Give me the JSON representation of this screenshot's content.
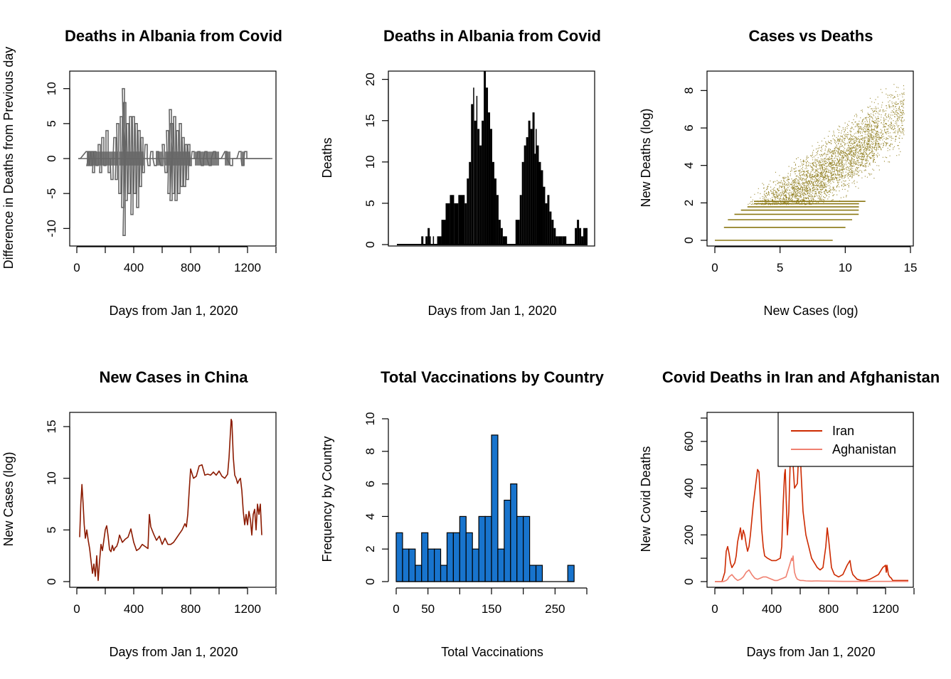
{
  "chart_data": [
    {
      "type": "line",
      "title": "Deaths in Albania from Covid",
      "xlabel": "Days from Jan 1, 2020",
      "ylabel": "Difference in Deaths from Previous day",
      "xlim": [
        0,
        1400
      ],
      "ylim": [
        -12,
        12
      ],
      "xticks": [
        0,
        400,
        800,
        1200
      ],
      "yticks": [
        -10,
        -5,
        0,
        5,
        10
      ],
      "color": "#666666",
      "series": [
        {
          "x": [
            10,
            65,
            70,
            80,
            90,
            100,
            110,
            120,
            135,
            150,
            160,
            175,
            190,
            205,
            220,
            240,
            260,
            270,
            280,
            295,
            305,
            315,
            320,
            325,
            330,
            340,
            350,
            360,
            370,
            380,
            390,
            400,
            410,
            420,
            430,
            440,
            450,
            460,
            480,
            500,
            520,
            545,
            560,
            590,
            600,
            620,
            630,
            640,
            650,
            655,
            660,
            670,
            680,
            690,
            700,
            710,
            720,
            730,
            740,
            750,
            760,
            770,
            780,
            790,
            810,
            830,
            850,
            875,
            900,
            930,
            960,
            1000,
            1040,
            1080,
            1110,
            1140,
            1160,
            1180,
            1250,
            1360
          ],
          "y": [
            0,
            1,
            -1,
            1,
            -1,
            1,
            -2,
            1,
            -1,
            2,
            -2,
            3,
            -1,
            4,
            -2,
            -3,
            3,
            -3,
            5,
            -5,
            6,
            -7,
            10,
            -11,
            8,
            -6,
            5,
            -5,
            6,
            -8,
            6,
            -5,
            5,
            -7,
            4,
            -4,
            3,
            -2,
            2,
            -1,
            1,
            -1,
            1,
            -1,
            2,
            -2,
            4,
            -5,
            7,
            -6,
            5,
            -5,
            6,
            -6,
            4,
            -5,
            5,
            -4,
            3,
            -4,
            2,
            -3,
            2,
            -1,
            1,
            0,
            1,
            -1,
            1,
            -1,
            1,
            0,
            1,
            -1,
            0,
            1,
            -1,
            1,
            0,
            0
          ]
        }
      ]
    },
    {
      "type": "bar",
      "title": "Deaths in Albania from Covid",
      "xlabel": "Days from Jan 1, 2020",
      "ylabel": "Deaths",
      "ylim": [
        0,
        21
      ],
      "yticks": [
        0,
        5,
        10,
        15,
        20
      ],
      "color": "#000000",
      "series": [
        {
          "x": [
            0,
            60,
            100,
            115,
            125,
            135,
            145,
            155,
            160,
            170,
            175,
            190,
            210,
            230,
            250,
            270,
            290,
            320,
            330,
            340,
            350,
            360,
            365,
            375,
            380,
            390,
            400,
            410,
            420,
            430,
            440,
            450,
            460,
            470,
            480,
            490,
            500,
            520,
            540,
            560,
            580,
            590,
            600,
            610,
            620,
            630,
            640,
            650,
            655,
            660,
            670,
            680,
            690,
            700,
            710,
            720,
            730,
            740,
            750,
            760,
            780,
            800,
            820,
            830,
            840,
            850,
            860,
            870,
            880,
            900
          ],
          "y": [
            0,
            0,
            0,
            1,
            0,
            1,
            2,
            1,
            0,
            1,
            0,
            1,
            3,
            5,
            6,
            5,
            6,
            5,
            8,
            10,
            17,
            19,
            15,
            18,
            14,
            12,
            15,
            21,
            19,
            16,
            14,
            10,
            8,
            6,
            3,
            2,
            1,
            0,
            0,
            3,
            6,
            10,
            12,
            13,
            15,
            14,
            16,
            11,
            14,
            12,
            10,
            9,
            7,
            5,
            6,
            4,
            3,
            2,
            1,
            1,
            1,
            0,
            0,
            0,
            2,
            3,
            2,
            1,
            2,
            1
          ]
        }
      ]
    },
    {
      "type": "scatter",
      "title": "Cases vs Deaths",
      "xlabel": "New Cases (log)",
      "ylabel": "New Deaths (log)",
      "xlim": [
        0,
        15
      ],
      "ylim": [
        0,
        9
      ],
      "xticks": [
        0,
        5,
        10,
        15
      ],
      "yticks": [
        0,
        2,
        4,
        6,
        8
      ],
      "color": "#8B7814",
      "points_description": [
        {
          "x": [
            0,
            9
          ],
          "y": 0
        },
        {
          "x": [
            0.7,
            10
          ],
          "y": 0.69
        },
        {
          "x": [
            1,
            10.5
          ],
          "y": 1.1
        },
        {
          "x": [
            1.5,
            11
          ],
          "y": 1.39
        },
        {
          "x": [
            2,
            11
          ],
          "y": 1.61
        },
        {
          "x": [
            2.5,
            11
          ],
          "y": 1.79
        },
        {
          "x": [
            3,
            11
          ],
          "y": 1.95
        },
        {
          "x": [
            3,
            11.5
          ],
          "y": 2.08
        }
      ],
      "cloud": {
        "x_range": [
          2.5,
          14.5
        ],
        "y_center_slope": 0.53,
        "y_center_intercept": -0.9
      }
    },
    {
      "type": "line",
      "title": "New Cases in China",
      "xlabel": "Days from Jan 1, 2020",
      "ylabel": "New Cases (log)",
      "xlim": [
        0,
        1400
      ],
      "ylim": [
        -0.5,
        16.5
      ],
      "xticks": [
        0,
        400,
        800,
        1200
      ],
      "yticks": [
        0,
        5,
        10,
        15
      ],
      "color": "#8B1A00",
      "series": [
        {
          "x": [
            20,
            28,
            36,
            44,
            52,
            60,
            70,
            80,
            90,
            100,
            110,
            120,
            130,
            140,
            150,
            160,
            170,
            180,
            190,
            200,
            210,
            220,
            230,
            240,
            250,
            260,
            270,
            280,
            290,
            300,
            320,
            340,
            360,
            380,
            400,
            420,
            440,
            460,
            480,
            500,
            510,
            520,
            540,
            560,
            580,
            600,
            620,
            640,
            660,
            680,
            700,
            720,
            740,
            760,
            770,
            780,
            790,
            800,
            820,
            840,
            860,
            880,
            900,
            920,
            940,
            960,
            980,
            1000,
            1020,
            1040,
            1060,
            1070,
            1080,
            1085,
            1090,
            1100,
            1110,
            1120,
            1130,
            1140,
            1150,
            1160,
            1170,
            1180,
            1190,
            1200,
            1210,
            1220,
            1230,
            1240,
            1250,
            1260,
            1270,
            1280,
            1290,
            1300
          ],
          "y": [
            4.3,
            7.5,
            9.4,
            7.6,
            5.5,
            4.2,
            5.0,
            4.0,
            3.2,
            2.0,
            0.8,
            1.7,
            0.5,
            2.5,
            0.1,
            2.0,
            3.6,
            3.0,
            4.0,
            5.0,
            5.4,
            4.4,
            3.1,
            2.9,
            3.5,
            3.0,
            3.3,
            3.4,
            3.8,
            4.5,
            3.8,
            4.1,
            4.3,
            5.1,
            3.8,
            3.0,
            3.2,
            3.6,
            3.4,
            3.2,
            6.5,
            5.3,
            4.6,
            4.0,
            4.4,
            3.6,
            4.2,
            3.6,
            3.6,
            3.8,
            4.2,
            4.6,
            5.0,
            5.6,
            5.3,
            6.5,
            8.8,
            10.9,
            10.0,
            10.2,
            11.2,
            11.3,
            10.3,
            10.4,
            10.3,
            10.6,
            10.3,
            10.7,
            10.2,
            10.0,
            10.4,
            12.0,
            14.5,
            15.7,
            15.5,
            12.0,
            10.3,
            10.0,
            9.5,
            9.8,
            10.0,
            8.8,
            6.8,
            5.5,
            6.5,
            5.5,
            6.8,
            6.0,
            4.5,
            6.5,
            7.0,
            5.0,
            7.5,
            6.5,
            7.5,
            4.5
          ]
        }
      ]
    },
    {
      "type": "bar",
      "title": "Total Vaccinations by Country",
      "xlabel": "Total Vaccinations",
      "ylabel": "Frequency by Country",
      "xlim": [
        0,
        300
      ],
      "ylim": [
        0,
        10
      ],
      "xticks": [
        0,
        50,
        150,
        250
      ],
      "yticks": [
        0,
        2,
        4,
        6,
        8,
        10
      ],
      "bin_width": 10,
      "color": "#1874CD",
      "bins_start": [
        0,
        10,
        20,
        30,
        40,
        50,
        60,
        70,
        80,
        90,
        100,
        110,
        120,
        130,
        140,
        150,
        160,
        170,
        180,
        190,
        200,
        210,
        220,
        230,
        240,
        250,
        260,
        270
      ],
      "values": [
        3,
        2,
        2,
        1,
        3,
        2,
        2,
        1,
        3,
        3,
        4,
        3,
        2,
        4,
        4,
        9,
        2,
        5,
        6,
        4,
        4,
        1,
        1,
        0,
        0,
        0,
        0,
        1
      ]
    },
    {
      "type": "line",
      "title": "Covid Deaths in Iran and Afghanistan",
      "xlabel": "Days from Jan 1, 2020",
      "ylabel": "New Covid Deaths",
      "xlim": [
        0,
        1400
      ],
      "ylim": [
        0,
        700
      ],
      "xticks": [
        0,
        400,
        800,
        1200
      ],
      "yticks": [
        0,
        200,
        400,
        600
      ],
      "legend_position": "top-right",
      "series": [
        {
          "name": "Iran",
          "color": "#CD2A00",
          "x": [
            0,
            50,
            70,
            80,
            90,
            100,
            110,
            120,
            140,
            150,
            160,
            170,
            180,
            190,
            200,
            210,
            220,
            230,
            240,
            250,
            270,
            290,
            300,
            310,
            320,
            330,
            340,
            350,
            370,
            400,
            430,
            460,
            470,
            480,
            490,
            495,
            500,
            510,
            520,
            530,
            540,
            560,
            580,
            590,
            600,
            605,
            620,
            640,
            660,
            680,
            700,
            720,
            740,
            760,
            780,
            790,
            800,
            820,
            840,
            870,
            900,
            930,
            950,
            960,
            970,
            1000,
            1030,
            1060,
            1090,
            1120,
            1150,
            1180,
            1200,
            1205,
            1210,
            1220,
            1230,
            1240,
            1250,
            1270,
            1300,
            1340,
            1360
          ],
          "y": [
            0,
            0,
            40,
            130,
            150,
            120,
            80,
            60,
            80,
            110,
            170,
            200,
            230,
            180,
            220,
            200,
            160,
            130,
            150,
            200,
            330,
            430,
            480,
            470,
            350,
            220,
            150,
            110,
            100,
            90,
            90,
            100,
            150,
            330,
            460,
            480,
            380,
            200,
            300,
            520,
            600,
            400,
            420,
            560,
            600,
            480,
            300,
            200,
            150,
            100,
            80,
            60,
            50,
            60,
            150,
            230,
            180,
            60,
            30,
            20,
            30,
            70,
            90,
            50,
            30,
            10,
            5,
            5,
            10,
            20,
            30,
            60,
            70,
            40,
            70,
            30,
            20,
            15,
            5,
            5,
            5,
            5,
            5
          ]
        },
        {
          "name": "Aghanistan",
          "color": "#F08070",
          "x": [
            0,
            60,
            80,
            90,
            100,
            120,
            140,
            160,
            180,
            200,
            220,
            240,
            260,
            280,
            300,
            320,
            340,
            360,
            380,
            400,
            420,
            440,
            460,
            480,
            500,
            520,
            530,
            540,
            545,
            550,
            555,
            560,
            570,
            580,
            600,
            620,
            640,
            680,
            720,
            760,
            800,
            900,
            1000,
            1100,
            1200,
            1300,
            1360
          ],
          "y": [
            0,
            0,
            5,
            10,
            20,
            30,
            15,
            5,
            10,
            20,
            40,
            50,
            30,
            15,
            10,
            15,
            20,
            20,
            15,
            10,
            5,
            5,
            10,
            15,
            20,
            60,
            80,
            100,
            90,
            110,
            70,
            40,
            20,
            10,
            5,
            5,
            3,
            2,
            3,
            2,
            2,
            1,
            1,
            1,
            1,
            1,
            1
          ]
        }
      ]
    }
  ]
}
